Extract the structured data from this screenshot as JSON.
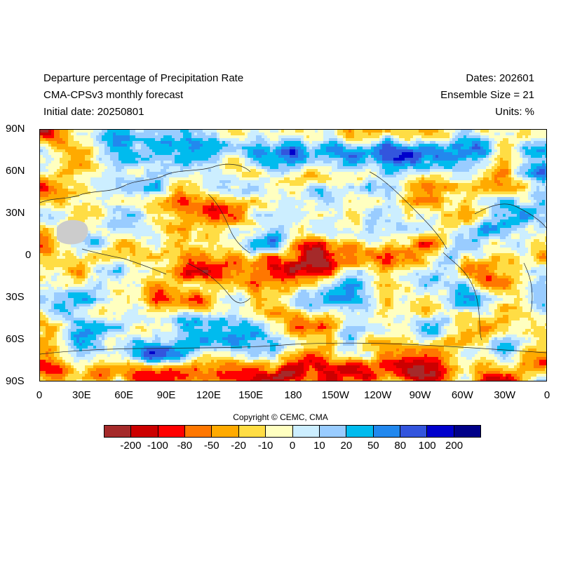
{
  "header": {
    "title": "Departure percentage of Precipitation Rate",
    "model": "CMA-CPSv3 monthly forecast",
    "initial_date": "Initial date: 20250801",
    "dates": "Dates: 202601",
    "ensemble": "Ensemble Size = 21",
    "units": "Units: %"
  },
  "map": {
    "projection": "equirectangular, 0 to 360 longitude",
    "lat_labels": [
      "90N",
      "60N",
      "30N",
      "0",
      "30S",
      "60S",
      "90S"
    ],
    "lon_labels": [
      "0",
      "30E",
      "60E",
      "90E",
      "120E",
      "150E",
      "180",
      "150W",
      "120W",
      "90W",
      "60W",
      "30W",
      "0"
    ],
    "missing_color": "#cccccc"
  },
  "copyright": "Copyright © CEMC, CMA",
  "colorbar": {
    "colors": [
      "#a52a2a",
      "#cc0000",
      "#ff0000",
      "#ff7700",
      "#ffaa00",
      "#ffdd44",
      "#ffffc0",
      "#cceeff",
      "#99ccff",
      "#00bbee",
      "#2288ee",
      "#3355dd",
      "#0000cc",
      "#000088"
    ],
    "labels": [
      "-200",
      "-100",
      "-80",
      "-50",
      "-20",
      "-10",
      "0",
      "10",
      "20",
      "50",
      "80",
      "100",
      "200"
    ]
  }
}
